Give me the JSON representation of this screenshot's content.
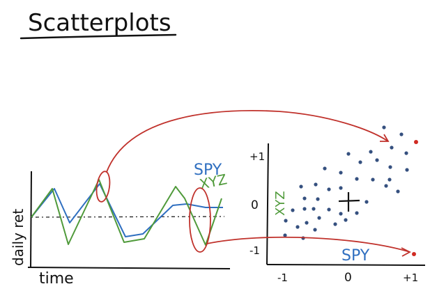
{
  "title": "Scatterplots",
  "timeseries": {
    "ylabel": "daily ret",
    "xlabel": "time",
    "legend_spy": "SPY",
    "legend_xyz": "XYZ"
  },
  "scatter": {
    "ylabel": "XYZ",
    "xlabel": "SPY",
    "y_ticks": [
      "+1",
      "0",
      "-1"
    ],
    "x_ticks": [
      "-1",
      "0",
      "+1"
    ]
  },
  "colors": {
    "ink": "#111111",
    "spy": "#2f6fc0",
    "xyz": "#4f9a3a",
    "arrow": "#c0312b",
    "dots": "#35507f"
  }
}
